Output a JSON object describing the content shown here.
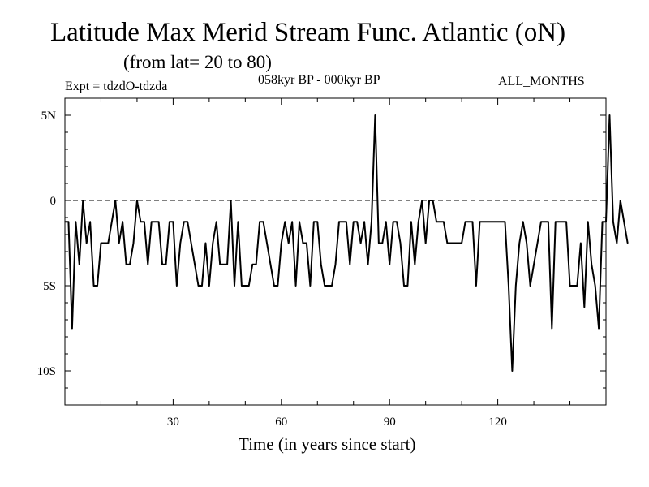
{
  "chart_data": {
    "type": "line",
    "title": "Latitude Max Merid Stream Func. Atlantic (oN)",
    "subtitle": "(from lat= 20 to 80)",
    "experiment": "Expt = tdzdO-tdzda",
    "period": "058kyr BP - 000kyr BP",
    "months": "ALL_MONTHS",
    "xlabel": "Time (in years since start)",
    "ylabel": "",
    "xlim": [
      0,
      150
    ],
    "ylim": [
      -12,
      6
    ],
    "x_ticks": [
      {
        "value": 30,
        "label": "30"
      },
      {
        "value": 60,
        "label": "60"
      },
      {
        "value": 90,
        "label": "90"
      },
      {
        "value": 120,
        "label": "120"
      }
    ],
    "y_ticks": [
      {
        "value": 5,
        "label": "5N"
      },
      {
        "value": 0,
        "label": "0"
      },
      {
        "value": -5,
        "label": "5S"
      },
      {
        "value": -10,
        "label": "10S"
      }
    ],
    "reference_line": 0,
    "series": [
      {
        "name": "Latitude max",
        "x_start": 0,
        "x_step": 1,
        "values": [
          -1.25,
          -1.25,
          -7.5,
          -1.25,
          -3.75,
          0,
          -2.5,
          -1.25,
          -5,
          -5,
          -2.5,
          -2.5,
          -2.5,
          -1.25,
          0,
          -2.5,
          -1.25,
          -3.75,
          -3.75,
          -2.5,
          0,
          -1.25,
          -1.25,
          -3.75,
          -1.25,
          -1.25,
          -1.25,
          -3.75,
          -3.75,
          -1.25,
          -1.25,
          -5,
          -2.5,
          -1.25,
          -1.25,
          -2.5,
          -3.75,
          -5,
          -5,
          -2.5,
          -5,
          -2.5,
          -1.25,
          -3.75,
          -3.75,
          -3.75,
          0,
          -5,
          -1.25,
          -5,
          -5,
          -5,
          -3.75,
          -3.75,
          -1.25,
          -1.25,
          -2.5,
          -3.75,
          -5,
          -5,
          -2.5,
          -1.25,
          -2.5,
          -1.25,
          -5,
          -1.25,
          -2.5,
          -2.5,
          -5,
          -1.25,
          -1.25,
          -3.75,
          -5,
          -5,
          -5,
          -3.75,
          -1.25,
          -1.25,
          -1.25,
          -3.75,
          -1.25,
          -1.25,
          -2.5,
          -1.25,
          -3.75,
          -1.25,
          5,
          -2.5,
          -2.5,
          -1.25,
          -3.75,
          -1.25,
          -1.25,
          -2.5,
          -5,
          -5,
          -1.25,
          -3.75,
          -1.25,
          0,
          -2.5,
          0,
          0,
          -1.25,
          -1.25,
          -1.25,
          -2.5,
          -2.5,
          -2.5,
          -2.5,
          -2.5,
          -1.25,
          -1.25,
          -1.25,
          -5,
          -1.25,
          -1.25,
          -1.25,
          -1.25,
          -1.25,
          -1.25,
          -1.25,
          -1.25,
          -5,
          -10,
          -5,
          -2.5,
          -1.25,
          -2.5,
          -5,
          -3.75,
          -2.5,
          -1.25,
          -1.25,
          -1.25,
          -7.5,
          -1.25,
          -1.25,
          -1.25,
          -1.25,
          -5,
          -5,
          -5,
          -2.5,
          -6.25,
          -1.25,
          -3.75,
          -5,
          -7.5,
          -1.25,
          -1.25,
          5,
          -1.25,
          -2.5,
          0,
          -1.25,
          -2.5
        ]
      }
    ]
  }
}
